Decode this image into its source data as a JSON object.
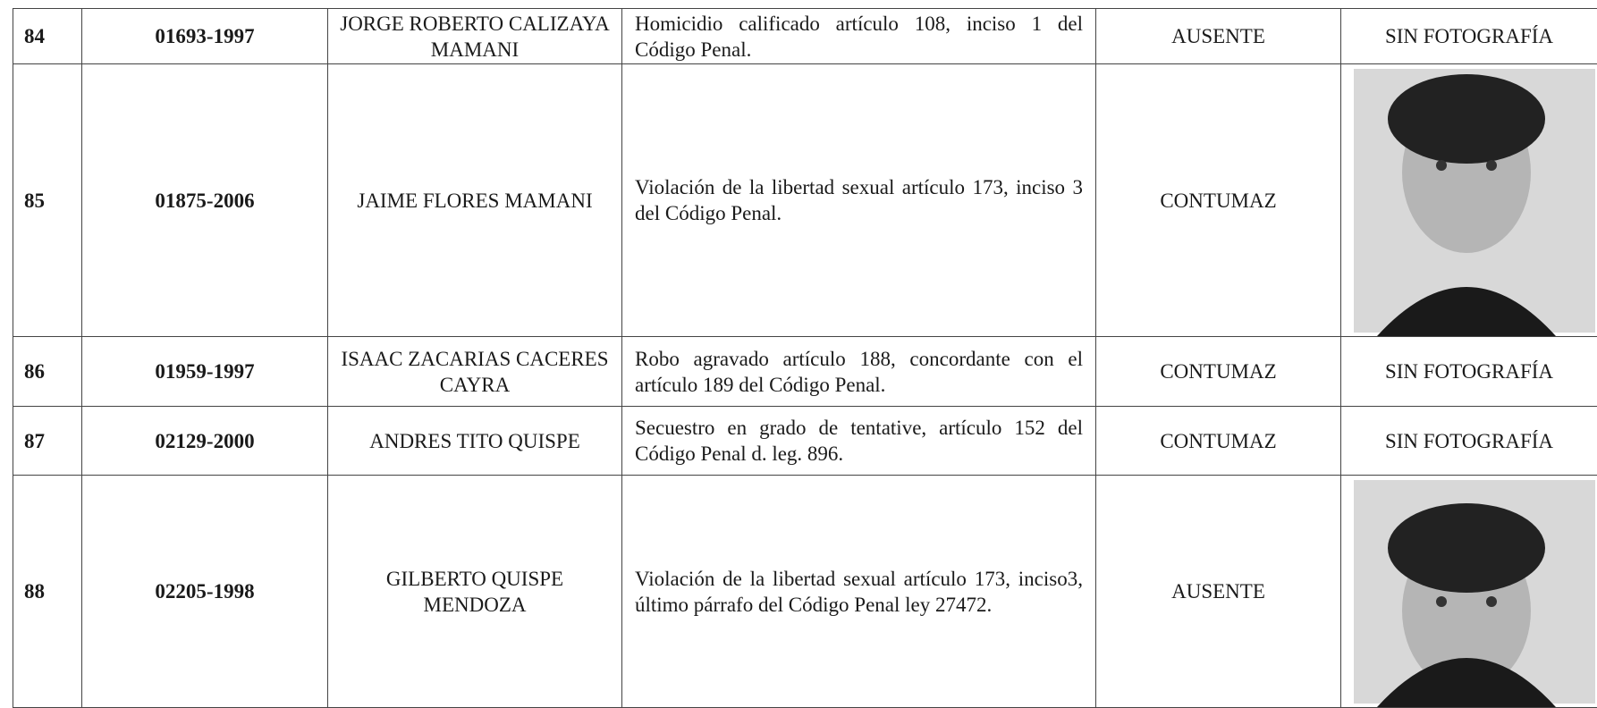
{
  "table": {
    "rows": [
      {
        "number": "84",
        "case": "01693-1997",
        "name": "JORGE ROBERTO CALIZAYA MAMANI",
        "crime": "Homicidio calificado artículo 108, inciso 1 del Código Penal.",
        "status": "AUSENTE",
        "photo": "SIN FOTOGRAFÍA"
      },
      {
        "number": "85",
        "case": "01875-2006",
        "name": "JAIME FLORES MAMANI",
        "crime": "Violación de la libertad sexual artículo 173, inciso 3 del Código Penal.",
        "status": "CONTUMAZ"
      },
      {
        "number": "86",
        "case": "01959-1997",
        "name": "ISAAC ZACARIAS CACERES CAYRA",
        "crime": "Robo agravado artículo 188, concordante con el artículo 189 del Código Penal.",
        "status": "CONTUMAZ",
        "photo": "SIN FOTOGRAFÍA"
      },
      {
        "number": "87",
        "case": "02129-2000",
        "name": "ANDRES TITO QUISPE",
        "crime": "Secuestro en grado de tentative, artículo 152 del Código Penal d. leg. 896.",
        "status": "CONTUMAZ",
        "photo": "SIN FOTOGRAFÍA"
      },
      {
        "number": "88",
        "case": "02205-1998",
        "name": "GILBERTO QUISPE MENDOZA",
        "crime": "Violación de la libertad sexual artículo 173, inciso3, último párrafo del Código Penal ley 27472.",
        "status": "AUSENTE"
      }
    ]
  }
}
